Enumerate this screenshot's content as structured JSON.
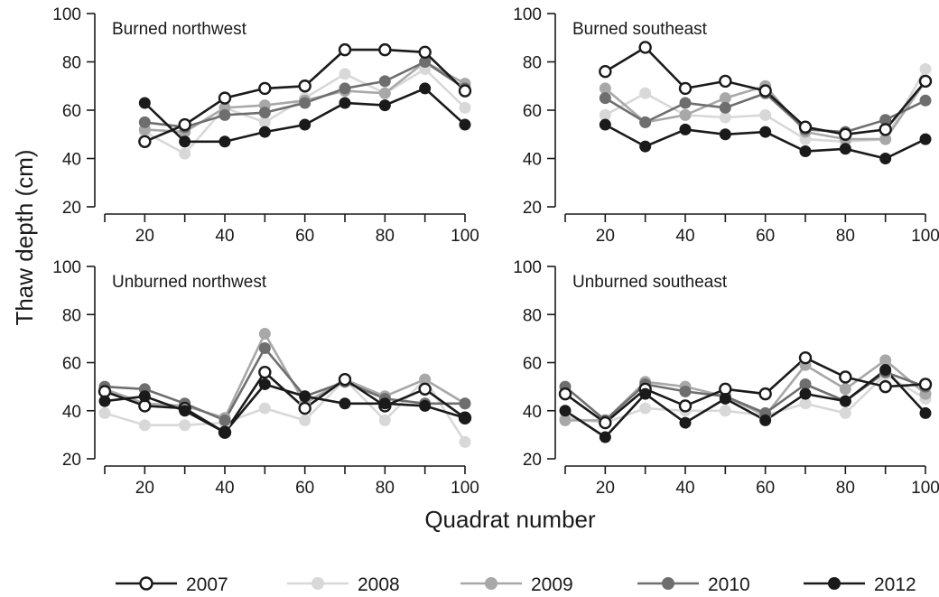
{
  "figure": {
    "ylabel": "Thaw depth (cm)",
    "xlabel": "Quadrat number"
  },
  "legend": [
    {
      "name": "2007",
      "color": "#1a1a1a",
      "fill": "#ffffff"
    },
    {
      "name": "2008",
      "color": "#d8d8d8",
      "fill": "#d8d8d8"
    },
    {
      "name": "2009",
      "color": "#a8a8a8",
      "fill": "#a8a8a8"
    },
    {
      "name": "2010",
      "color": "#6e6e6e",
      "fill": "#6e6e6e"
    },
    {
      "name": "2012",
      "color": "#1a1a1a",
      "fill": "#1a1a1a"
    }
  ],
  "chart_data": [
    {
      "type": "line",
      "title": "Burned northwest",
      "x": [
        20,
        30,
        40,
        50,
        60,
        70,
        80,
        90,
        100
      ],
      "xticks": [
        20,
        40,
        60,
        80,
        100
      ],
      "xlim": [
        10,
        100
      ],
      "yticks": [
        20,
        40,
        60,
        80,
        100
      ],
      "ylim": [
        20,
        100
      ],
      "series": [
        {
          "name": "2008",
          "values": [
            51,
            42,
            61,
            55,
            65,
            75,
            67,
            77,
            61
          ]
        },
        {
          "name": "2009",
          "values": [
            52,
            51,
            61,
            62,
            64,
            68,
            67,
            80,
            71
          ]
        },
        {
          "name": "2010",
          "values": [
            55,
            53,
            58,
            59,
            63,
            69,
            72,
            80,
            69
          ]
        },
        {
          "name": "2007",
          "values": [
            47,
            54,
            65,
            69,
            70,
            85,
            85,
            84,
            68
          ]
        },
        {
          "name": "2012",
          "values": [
            63,
            47,
            47,
            51,
            54,
            63,
            62,
            69,
            54
          ]
        }
      ]
    },
    {
      "type": "line",
      "title": "Burned southeast",
      "x": [
        20,
        30,
        40,
        50,
        60,
        70,
        80,
        90,
        100
      ],
      "xticks": [
        20,
        40,
        60,
        80,
        100
      ],
      "xlim": [
        10,
        100
      ],
      "yticks": [
        20,
        40,
        60,
        80,
        100
      ],
      "ylim": [
        20,
        100
      ],
      "series": [
        {
          "name": "2008",
          "values": [
            58,
            67,
            58,
            57,
            58,
            48,
            47,
            48,
            77
          ]
        },
        {
          "name": "2009",
          "values": [
            69,
            55,
            58,
            65,
            70,
            51,
            48,
            48,
            72
          ]
        },
        {
          "name": "2010",
          "values": [
            65,
            55,
            63,
            61,
            67,
            52,
            51,
            56,
            64
          ]
        },
        {
          "name": "2007",
          "values": [
            76,
            86,
            69,
            72,
            68,
            53,
            50,
            52,
            72
          ]
        },
        {
          "name": "2012",
          "values": [
            54,
            45,
            52,
            50,
            51,
            43,
            44,
            40,
            48
          ]
        }
      ]
    },
    {
      "type": "line",
      "title": "Unburned northwest",
      "x": [
        10,
        20,
        30,
        40,
        50,
        60,
        70,
        80,
        90,
        100
      ],
      "xticks": [
        20,
        40,
        60,
        80,
        100
      ],
      "xlim": [
        10,
        100
      ],
      "yticks": [
        20,
        40,
        60,
        80,
        100
      ],
      "ylim": [
        20,
        100
      ],
      "series": [
        {
          "name": "2008",
          "values": [
            39,
            34,
            34,
            35,
            41,
            36,
            53,
            36,
            53,
            27
          ]
        },
        {
          "name": "2009",
          "values": [
            49,
            43,
            42,
            37,
            72,
            43,
            53,
            46,
            53,
            43
          ]
        },
        {
          "name": "2010",
          "values": [
            50,
            49,
            43,
            36,
            66,
            46,
            52,
            45,
            43,
            43
          ]
        },
        {
          "name": "2007",
          "values": [
            48,
            42,
            41,
            31,
            56,
            41,
            53,
            42,
            49,
            37
          ]
        },
        {
          "name": "2012",
          "values": [
            44,
            46,
            40,
            31,
            51,
            46,
            43,
            43,
            42,
            37
          ]
        }
      ]
    },
    {
      "type": "line",
      "title": "Unburned southeast",
      "x": [
        10,
        20,
        30,
        40,
        50,
        60,
        70,
        80,
        90,
        100
      ],
      "xticks": [
        20,
        40,
        60,
        80,
        100
      ],
      "xlim": [
        10,
        100
      ],
      "yticks": [
        20,
        40,
        60,
        80,
        100
      ],
      "ylim": [
        20,
        100
      ],
      "series": [
        {
          "name": "2008",
          "values": [
            37,
            35,
            41,
            40,
            40,
            38,
            43,
            39,
            55,
            45
          ]
        },
        {
          "name": "2009",
          "values": [
            36,
            36,
            52,
            50,
            46,
            38,
            59,
            49,
            61,
            47
          ]
        },
        {
          "name": "2010",
          "values": [
            50,
            36,
            51,
            48,
            46,
            39,
            51,
            44,
            56,
            50
          ]
        },
        {
          "name": "2007",
          "values": [
            47,
            35,
            49,
            42,
            49,
            47,
            62,
            54,
            50,
            51
          ]
        },
        {
          "name": "2012",
          "values": [
            40,
            29,
            47,
            35,
            45,
            36,
            47,
            44,
            57,
            39
          ]
        }
      ]
    }
  ]
}
